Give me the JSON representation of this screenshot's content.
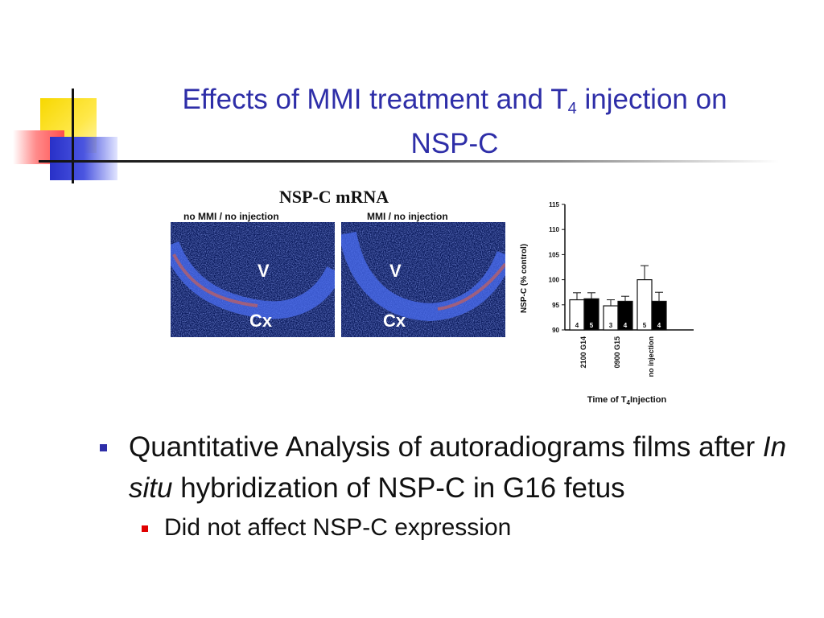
{
  "slide": {
    "title_line1_pre": "Effects of MMI treatment and T",
    "title_sub": "4",
    "title_line1_post": " injection on",
    "title_line2": "NSP-C"
  },
  "figure": {
    "heading": "NSP-C mRNA",
    "panels": [
      {
        "label": "no MMI / no injection",
        "v": "V",
        "cx": "Cx"
      },
      {
        "label": "MMI / no injection",
        "v": "V",
        "cx": "Cx"
      }
    ]
  },
  "chart_data": {
    "type": "bar",
    "ylabel": "NSP-C (% control)",
    "xlabel_pre": "Time of T",
    "xlabel_sub": "4",
    "xlabel_post": "Injection",
    "ylim": [
      90,
      115
    ],
    "yticks": [
      90,
      95,
      100,
      105,
      110,
      115
    ],
    "categories": [
      "2100 G14",
      "0900 G15",
      "no injection"
    ],
    "series": [
      {
        "fill": "#ffffff",
        "values": [
          96,
          94.8,
          100
        ],
        "errors": [
          1.4,
          1.2,
          2.8
        ],
        "n": [
          "4",
          "3",
          "5"
        ]
      },
      {
        "fill": "#000000",
        "values": [
          96.2,
          95.7,
          95.7
        ],
        "errors": [
          1.2,
          1.0,
          1.8
        ],
        "n": [
          "5",
          "4",
          "4"
        ]
      }
    ]
  },
  "bullets": {
    "main_pre": "Quantitative Analysis of autoradiograms films after ",
    "main_italic": "In situ",
    "main_post": " hybridization of NSP-C in G16 fetus",
    "sub": "Did not affect NSP-C expression"
  },
  "colors": {
    "title": "#2e2ea8",
    "bullet_main": "#2e2ea8",
    "bullet_sub": "#e00000"
  }
}
